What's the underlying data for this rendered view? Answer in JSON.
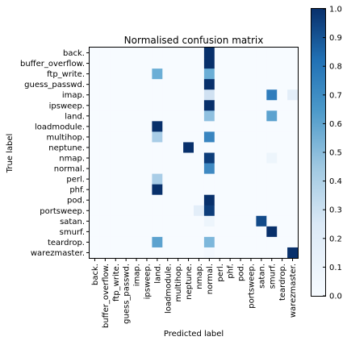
{
  "chart_data": {
    "type": "heatmap",
    "title": "Normalised confusion matrix",
    "xlabel": "Predicted label",
    "ylabel": "True label",
    "categories": [
      "back.",
      "buffer_overflow.",
      "ftp_write.",
      "guess_passwd.",
      "imap.",
      "ipsweep.",
      "land.",
      "loadmodule.",
      "multihop.",
      "neptune.",
      "nmap.",
      "normal.",
      "perl.",
      "phf.",
      "pod.",
      "portsweep.",
      "satan.",
      "smurf.",
      "teardrop.",
      "warezmaster."
    ],
    "color_range": [
      0.0,
      1.0
    ],
    "colorbar_ticks": [
      "0.0",
      "0.1",
      "0.2",
      "0.3",
      "0.4",
      "0.5",
      "0.6",
      "0.7",
      "0.8",
      "0.9",
      "1.0"
    ],
    "colormap": [
      "#f7fbff",
      "#c6dbef",
      "#6baed6",
      "#2171b5",
      "#08306b"
    ],
    "grid": false,
    "legend_position": "right",
    "values": [
      [
        0,
        0,
        0,
        0,
        0,
        0,
        0,
        0,
        0,
        0,
        0,
        1.0,
        0,
        0,
        0,
        0,
        0,
        0,
        0,
        0
      ],
      [
        0,
        0,
        0,
        0,
        0,
        0,
        0,
        0,
        0,
        0,
        0,
        1.0,
        0,
        0,
        0,
        0,
        0,
        0,
        0,
        0
      ],
      [
        0,
        0,
        0,
        0,
        0,
        0,
        0.5,
        0,
        0,
        0,
        0,
        0.5,
        0,
        0,
        0,
        0,
        0,
        0,
        0,
        0
      ],
      [
        0,
        0,
        0,
        0,
        0,
        0,
        0,
        0,
        0,
        0,
        0,
        1.0,
        0,
        0,
        0,
        0,
        0,
        0,
        0,
        0
      ],
      [
        0,
        0,
        0,
        0,
        0,
        0,
        0,
        0,
        0,
        0,
        0,
        0.2,
        0,
        0,
        0,
        0,
        0,
        0.7,
        0,
        0.1
      ],
      [
        0,
        0,
        0,
        0,
        0,
        0,
        0,
        0,
        0,
        0,
        0,
        1.0,
        0,
        0,
        0,
        0,
        0,
        0,
        0,
        0
      ],
      [
        0,
        0,
        0,
        0,
        0,
        0,
        0,
        0,
        0,
        0,
        0,
        0.4,
        0,
        0,
        0,
        0,
        0,
        0.55,
        0,
        0
      ],
      [
        0,
        0,
        0,
        0,
        0,
        0,
        1.0,
        0,
        0,
        0,
        0,
        0,
        0,
        0,
        0,
        0,
        0,
        0,
        0,
        0
      ],
      [
        0,
        0,
        0,
        0,
        0,
        0,
        0.33,
        0,
        0,
        0,
        0,
        0.67,
        0,
        0,
        0,
        0,
        0,
        0,
        0,
        0
      ],
      [
        0,
        0,
        0,
        0,
        0,
        0,
        0,
        0,
        0,
        1.0,
        0,
        0,
        0,
        0,
        0,
        0,
        0,
        0,
        0,
        0
      ],
      [
        0,
        0,
        0,
        0,
        0,
        0,
        0,
        0,
        0,
        0,
        0,
        0.95,
        0,
        0,
        0,
        0,
        0,
        0.05,
        0,
        0
      ],
      [
        0,
        0,
        0,
        0,
        0,
        0,
        0.0,
        0,
        0,
        0,
        0,
        0.65,
        0,
        0,
        0,
        0,
        0,
        0,
        0,
        0
      ],
      [
        0,
        0,
        0,
        0,
        0,
        0,
        0.33,
        0,
        0,
        0,
        0,
        0.0,
        0,
        0,
        0,
        0,
        0,
        0,
        0,
        0
      ],
      [
        0,
        0,
        0,
        0,
        0,
        0,
        1.0,
        0,
        0,
        0,
        0,
        0,
        0,
        0,
        0,
        0,
        0,
        0,
        0,
        0
      ],
      [
        0,
        0,
        0,
        0,
        0,
        0,
        0,
        0,
        0,
        0,
        0,
        1.0,
        0,
        0,
        0,
        0,
        0,
        0,
        0,
        0
      ],
      [
        0,
        0,
        0,
        0,
        0,
        0,
        0,
        0,
        0,
        0,
        0.1,
        0.95,
        0,
        0,
        0,
        0,
        0,
        0,
        0,
        0
      ],
      [
        0,
        0,
        0,
        0,
        0,
        0,
        0,
        0,
        0,
        0,
        0,
        0.05,
        0,
        0,
        0,
        0,
        0.9,
        0,
        0,
        0
      ],
      [
        0,
        0,
        0,
        0,
        0,
        0,
        0,
        0,
        0,
        0,
        0,
        0.0,
        0,
        0,
        0,
        0,
        0,
        1.0,
        0,
        0
      ],
      [
        0,
        0,
        0,
        0,
        0,
        0,
        0.55,
        0,
        0,
        0,
        0,
        0.45,
        0,
        0,
        0,
        0,
        0,
        0,
        0,
        0
      ],
      [
        0,
        0,
        0,
        0,
        0,
        0,
        0,
        0,
        0,
        0,
        0,
        0.02,
        0,
        0,
        0,
        0,
        0,
        0,
        0,
        1.0
      ]
    ]
  }
}
